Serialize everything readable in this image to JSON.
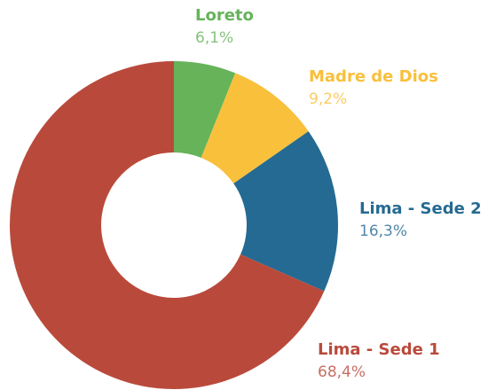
{
  "chart_data": {
    "type": "donut",
    "categories": [
      "Loreto",
      "Madre de Dios",
      "Lima - Sede 2",
      "Lima - Sede 1"
    ],
    "values": [
      6.1,
      9.2,
      16.3,
      68.4
    ],
    "value_labels": [
      "6,1%",
      "9,2%",
      "16,3%",
      "68,4%"
    ],
    "colors": [
      "#66b35a",
      "#f9c03c",
      "#256a92",
      "#b94a3b"
    ]
  }
}
